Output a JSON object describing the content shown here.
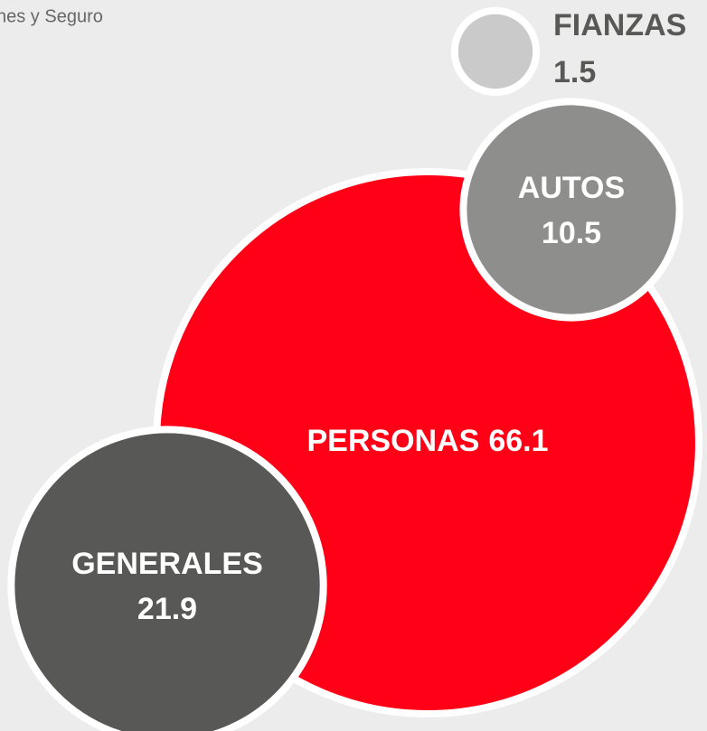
{
  "chart_data": {
    "type": "bubble",
    "subtitle": "nes y Seguro",
    "categories": [
      "PERSONAS",
      "GENERALES",
      "AUTOS",
      "FIANZAS"
    ],
    "values": [
      66.1,
      21.9,
      10.5,
      1.5
    ],
    "colors": [
      "#ff0016",
      "#585856",
      "#8e8e8c",
      "#cacaca"
    ]
  }
}
